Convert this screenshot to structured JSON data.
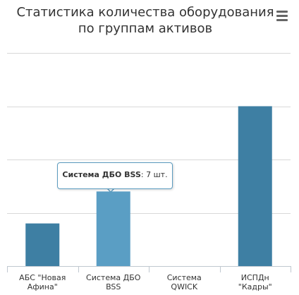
{
  "title": "Статистика количества оборудования по группам активов",
  "tooltip": {
    "category": "Система ДБО BSS",
    "separator": ": ",
    "value_text": "7 шт."
  },
  "colors": {
    "bar": "#3e7fa3",
    "bar_hover": "#5a9ec4",
    "grid": "#d8d8d8",
    "axis": "#c0c8d0",
    "label": "#333333"
  },
  "icons": {
    "menu": "hamburger-menu-icon"
  },
  "chart_data": {
    "type": "bar",
    "title": "Статистика количества оборудования по группам активов",
    "categories": [
      [
        "АБС \"Новая",
        "Афина\""
      ],
      [
        "Система ДБО",
        "BSS"
      ],
      [
        "Система",
        "QWICK"
      ],
      [
        "ИСПДн",
        "\"Кадры\""
      ]
    ],
    "values": [
      4,
      7,
      0,
      15
    ],
    "unit": "шт.",
    "ylim": [
      0,
      20
    ],
    "grid": true,
    "legend": false,
    "highlighted_index": 1
  }
}
